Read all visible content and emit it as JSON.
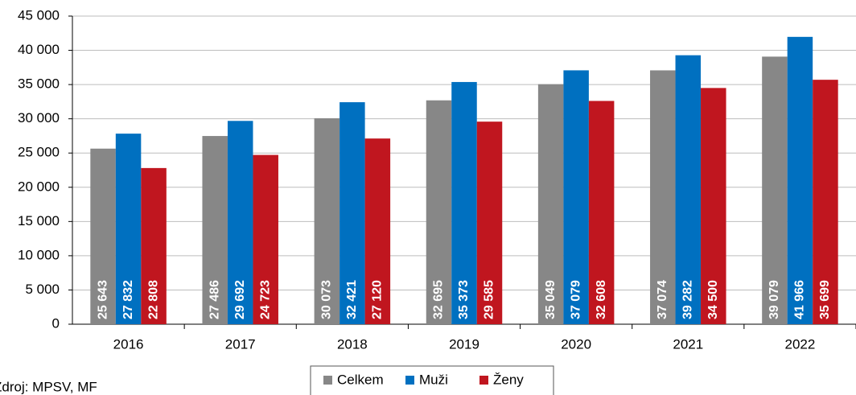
{
  "chart_data": {
    "type": "bar",
    "categories": [
      "2016",
      "2017",
      "2018",
      "2019",
      "2020",
      "2021",
      "2022"
    ],
    "series": [
      {
        "name": "Celkem",
        "color": "#878787",
        "values": [
          25643,
          27486,
          30073,
          32695,
          35049,
          37074,
          39079
        ],
        "value_labels": [
          "25 643",
          "27 486",
          "30 073",
          "32 695",
          "35 049",
          "37 074",
          "39 079"
        ]
      },
      {
        "name": "Muži",
        "color": "#0070c0",
        "values": [
          27832,
          29692,
          32421,
          35373,
          37079,
          39282,
          41966
        ],
        "value_labels": [
          "27 832",
          "29 692",
          "32 421",
          "35 373",
          "37 079",
          "39 282",
          "41 966"
        ]
      },
      {
        "name": "Ženy",
        "color": "#c0161f",
        "values": [
          22808,
          24723,
          27120,
          29585,
          32608,
          34500,
          35699
        ],
        "value_labels": [
          "22 808",
          "24 723",
          "27 120",
          "29 585",
          "32 608",
          "34 500",
          "35 699"
        ]
      }
    ],
    "ylim": [
      0,
      45000
    ],
    "yticks": [
      0,
      {
        "value": 5000,
        "label": "5 000"
      },
      {
        "value": 10000,
        "label": "10 000"
      },
      {
        "value": 15000,
        "label": "15 000"
      },
      {
        "value": 20000,
        "label": "20 000"
      },
      {
        "value": 25000,
        "label": "25 000"
      },
      {
        "value": 30000,
        "label": "30 000"
      },
      {
        "value": 35000,
        "label": "35 000"
      },
      {
        "value": 40000,
        "label": "40 000"
      },
      {
        "value": 45000,
        "label": "45 000"
      }
    ],
    "grid": true,
    "legend": "bottom",
    "source": "Zdroj: MPSV, MF"
  }
}
